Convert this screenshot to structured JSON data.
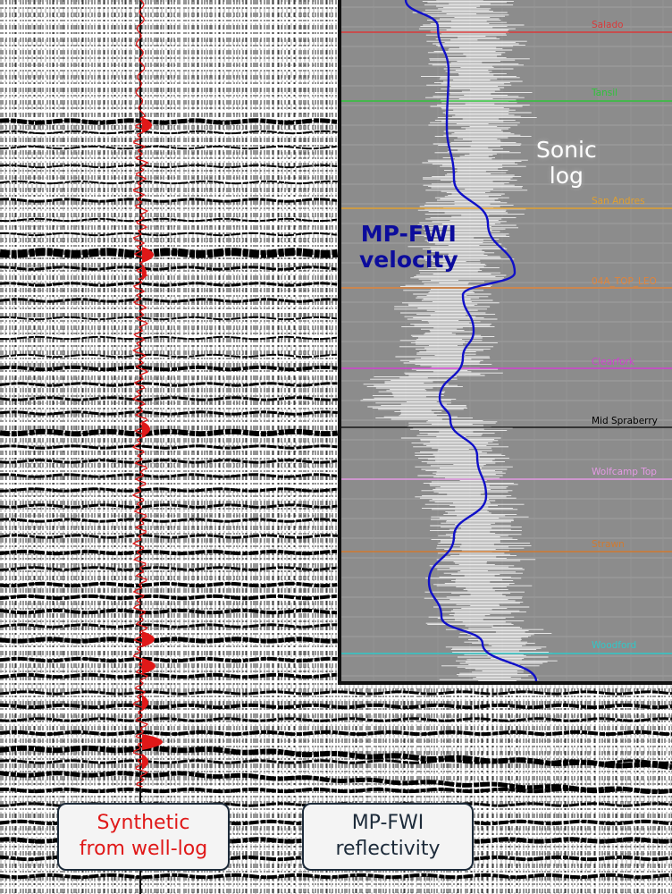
{
  "labels": {
    "sonic_line1": "Sonic",
    "sonic_line2": "log",
    "mpfwi_line1": "MP-FWI",
    "mpfwi_line2": "velocity"
  },
  "captions": {
    "synthetic_line1": "Synthetic",
    "synthetic_line2": "from well-log",
    "reflectivity_line1": "MP-FWI",
    "reflectivity_line2": "reflectivity"
  },
  "formations": [
    {
      "name": "Salado",
      "color": "#d83a3a"
    },
    {
      "name": "Tansil",
      "color": "#2fc33a"
    },
    {
      "name": "San Andres",
      "color": "#e0a030"
    },
    {
      "name": "04A_TOP_LEO",
      "color": "#e0843a"
    },
    {
      "name": "Clearfork",
      "color": "#d040d0"
    },
    {
      "name": "Mid Spraberry",
      "color": "#000000"
    },
    {
      "name": "Wolfcamp Top",
      "color": "#e49ae4"
    },
    {
      "name": "Strawn",
      "color": "#d07a30"
    },
    {
      "name": "Woodford",
      "color": "#30c8c8"
    }
  ],
  "colors": {
    "synthetic_trace": "#e01818",
    "velocity_curve": "#1010c8",
    "sonic_log": "#ffffff",
    "inset_background": "#8c8c8c"
  }
}
